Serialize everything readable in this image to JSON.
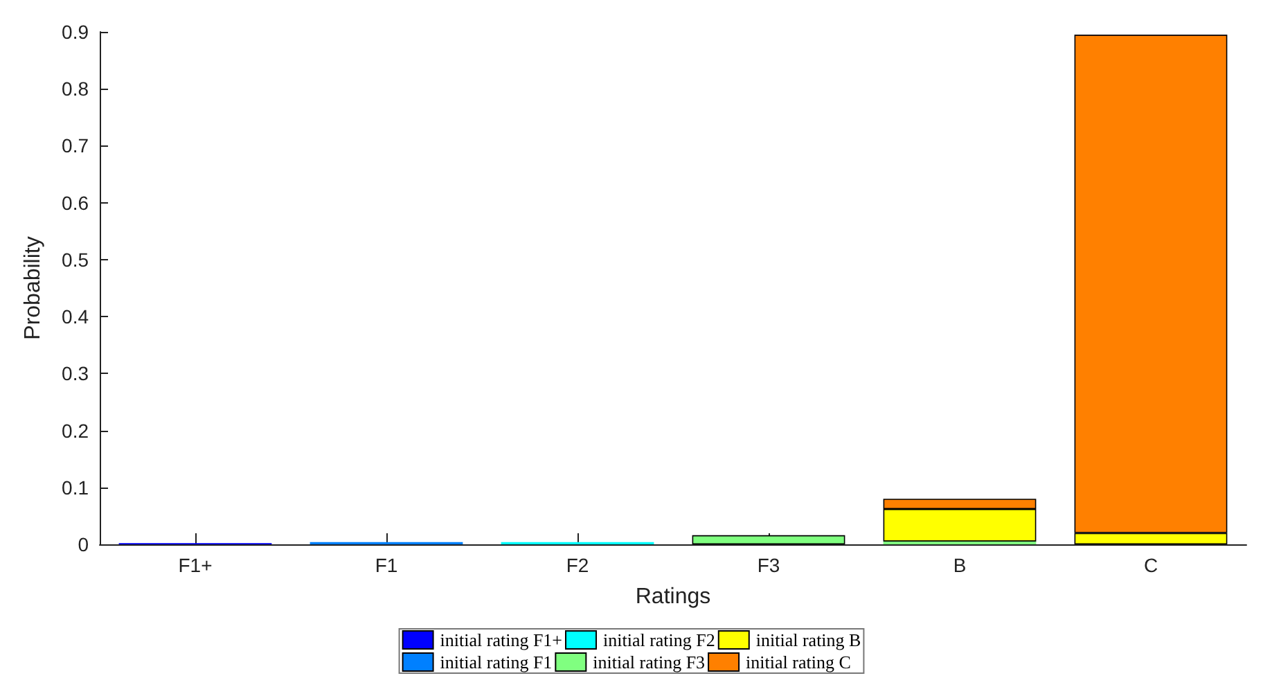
{
  "chart_data": {
    "type": "bar",
    "stacked": true,
    "xlabel": "Ratings",
    "ylabel": "Probability",
    "categories": [
      "F1+",
      "F1",
      "F2",
      "F3",
      "B",
      "C"
    ],
    "series": [
      {
        "name": "initial rating F1+",
        "color": "#0000ff",
        "values": [
          0.002,
          0,
          0,
          0,
          0,
          0
        ]
      },
      {
        "name": "initial rating F1",
        "color": "#0080ff",
        "values": [
          0,
          0.004,
          0,
          0,
          0,
          0
        ]
      },
      {
        "name": "initial rating F2",
        "color": "#00ffff",
        "values": [
          0,
          0,
          0.004,
          0,
          0,
          0
        ]
      },
      {
        "name": "initial rating F3",
        "color": "#80ff80",
        "values": [
          0,
          0,
          0,
          0.016,
          0.005,
          0
        ]
      },
      {
        "name": "initial rating B",
        "color": "#ffff00",
        "values": [
          0,
          0,
          0,
          0,
          0.057,
          0.02
        ]
      },
      {
        "name": "initial rating C",
        "color": "#ff8000",
        "values": [
          0,
          0,
          0,
          0,
          0.018,
          0.875
        ]
      }
    ],
    "ylim": [
      0,
      0.9
    ],
    "yticks": [
      0,
      0.1,
      0.2,
      0.3,
      0.4,
      0.5,
      0.6,
      0.7,
      0.8,
      0.9
    ],
    "grid": false,
    "legend": "bottom"
  }
}
